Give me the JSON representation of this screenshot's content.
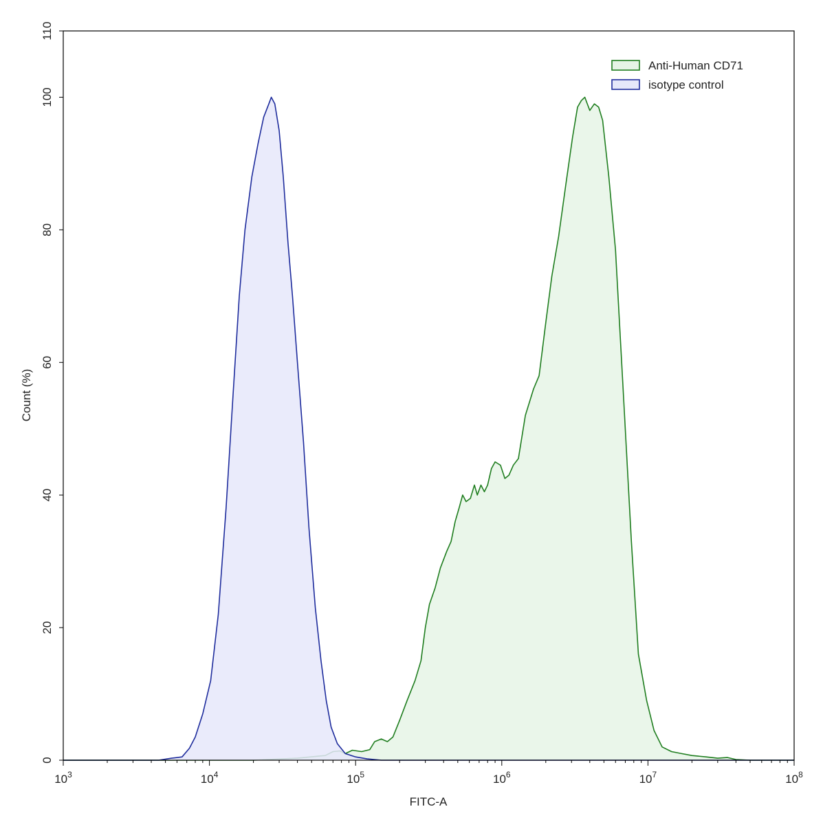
{
  "chart_data": {
    "type": "area",
    "xlabel": "FITC-A",
    "ylabel": "Count  (%)",
    "x_scale": "log",
    "xlim": [
      1000,
      100000000
    ],
    "ylim": [
      0,
      110
    ],
    "x_ticks": [
      {
        "value": 1000,
        "base": "10",
        "exp": "3"
      },
      {
        "value": 10000,
        "base": "10",
        "exp": "4"
      },
      {
        "value": 100000,
        "base": "10",
        "exp": "5"
      },
      {
        "value": 1000000,
        "base": "10",
        "exp": "6"
      },
      {
        "value": 10000000,
        "base": "10",
        "exp": "7"
      },
      {
        "value": 100000000,
        "base": "10",
        "exp": "8"
      }
    ],
    "y_ticks": [
      0,
      20,
      40,
      60,
      80,
      100,
      110
    ],
    "grid": false,
    "legend_position": "top-right",
    "series": [
      {
        "name": "Anti-Human CD71",
        "color": "#1e7d1e",
        "fill": "#e6f4e6",
        "points": [
          [
            1000,
            0
          ],
          [
            8000,
            0
          ],
          [
            20000,
            0
          ],
          [
            40000,
            0.3
          ],
          [
            55000,
            0.6
          ],
          [
            62000,
            0.7
          ],
          [
            70000,
            1.3
          ],
          [
            78000,
            1.4
          ],
          [
            85000,
            1.0
          ],
          [
            95000,
            1.5
          ],
          [
            110000,
            1.3
          ],
          [
            125000,
            1.6
          ],
          [
            135000,
            2.8
          ],
          [
            150000,
            3.2
          ],
          [
            165000,
            2.8
          ],
          [
            180000,
            3.5
          ],
          [
            200000,
            6.0
          ],
          [
            225000,
            9.0
          ],
          [
            255000,
            12.0
          ],
          [
            280000,
            15.0
          ],
          [
            300000,
            20.0
          ],
          [
            320000,
            23.5
          ],
          [
            350000,
            26.0
          ],
          [
            380000,
            29.0
          ],
          [
            420000,
            31.5
          ],
          [
            450000,
            33.0
          ],
          [
            480000,
            36.0
          ],
          [
            510000,
            38.0
          ],
          [
            540000,
            40.0
          ],
          [
            570000,
            39.0
          ],
          [
            610000,
            39.5
          ],
          [
            650000,
            41.5
          ],
          [
            680000,
            40.0
          ],
          [
            720000,
            41.5
          ],
          [
            760000,
            40.5
          ],
          [
            800000,
            41.5
          ],
          [
            850000,
            44.0
          ],
          [
            900000,
            45.0
          ],
          [
            980000,
            44.5
          ],
          [
            1050000,
            42.5
          ],
          [
            1120000,
            43.0
          ],
          [
            1200000,
            44.5
          ],
          [
            1300000,
            45.5
          ],
          [
            1450000,
            52.0
          ],
          [
            1650000,
            56.0
          ],
          [
            1800000,
            58.0
          ],
          [
            2000000,
            66.0
          ],
          [
            2200000,
            73.0
          ],
          [
            2450000,
            79.0
          ],
          [
            2750000,
            87.0
          ],
          [
            3050000,
            94.0
          ],
          [
            3300000,
            98.5
          ],
          [
            3500000,
            99.5
          ],
          [
            3700000,
            100
          ],
          [
            4000000,
            98.0
          ],
          [
            4300000,
            99.0
          ],
          [
            4600000,
            98.5
          ],
          [
            4900000,
            96.5
          ],
          [
            5400000,
            88.0
          ],
          [
            6000000,
            77.0
          ],
          [
            6800000,
            55.0
          ],
          [
            7700000,
            33.0
          ],
          [
            8600000,
            16.0
          ],
          [
            9800000,
            9.0
          ],
          [
            11000000,
            4.5
          ],
          [
            12500000,
            2.0
          ],
          [
            14500000,
            1.3
          ],
          [
            17000000,
            1.0
          ],
          [
            20000000,
            0.7
          ],
          [
            25000000,
            0.5
          ],
          [
            30000000,
            0.3
          ],
          [
            35000000,
            0.4
          ],
          [
            40000000,
            0.1
          ],
          [
            50000000,
            0
          ],
          [
            100000000,
            0
          ]
        ]
      },
      {
        "name": "isotype control",
        "color": "#1d2b9c",
        "fill": "#e6e8fa",
        "points": [
          [
            1000,
            0
          ],
          [
            4500,
            0
          ],
          [
            5500,
            0.3
          ],
          [
            6500,
            0.5
          ],
          [
            7300,
            1.8
          ],
          [
            8000,
            3.5
          ],
          [
            9000,
            7.0
          ],
          [
            10200,
            12.0
          ],
          [
            11500,
            22.0
          ],
          [
            13000,
            38.0
          ],
          [
            14500,
            55.0
          ],
          [
            16000,
            70.0
          ],
          [
            17500,
            80.0
          ],
          [
            19500,
            88.0
          ],
          [
            21500,
            93.0
          ],
          [
            23500,
            97.0
          ],
          [
            25500,
            99.0
          ],
          [
            26500,
            100
          ],
          [
            28000,
            99.0
          ],
          [
            30000,
            95.0
          ],
          [
            32000,
            88.0
          ],
          [
            34500,
            78.0
          ],
          [
            37000,
            70.0
          ],
          [
            40000,
            60.0
          ],
          [
            44000,
            48.0
          ],
          [
            48000,
            35.0
          ],
          [
            53000,
            23.0
          ],
          [
            58000,
            15.0
          ],
          [
            63000,
            9.0
          ],
          [
            68000,
            5.0
          ],
          [
            75000,
            2.5
          ],
          [
            85000,
            1.0
          ],
          [
            100000,
            0.5
          ],
          [
            120000,
            0.2
          ],
          [
            150000,
            0
          ],
          [
            100000000,
            0
          ]
        ]
      }
    ]
  }
}
